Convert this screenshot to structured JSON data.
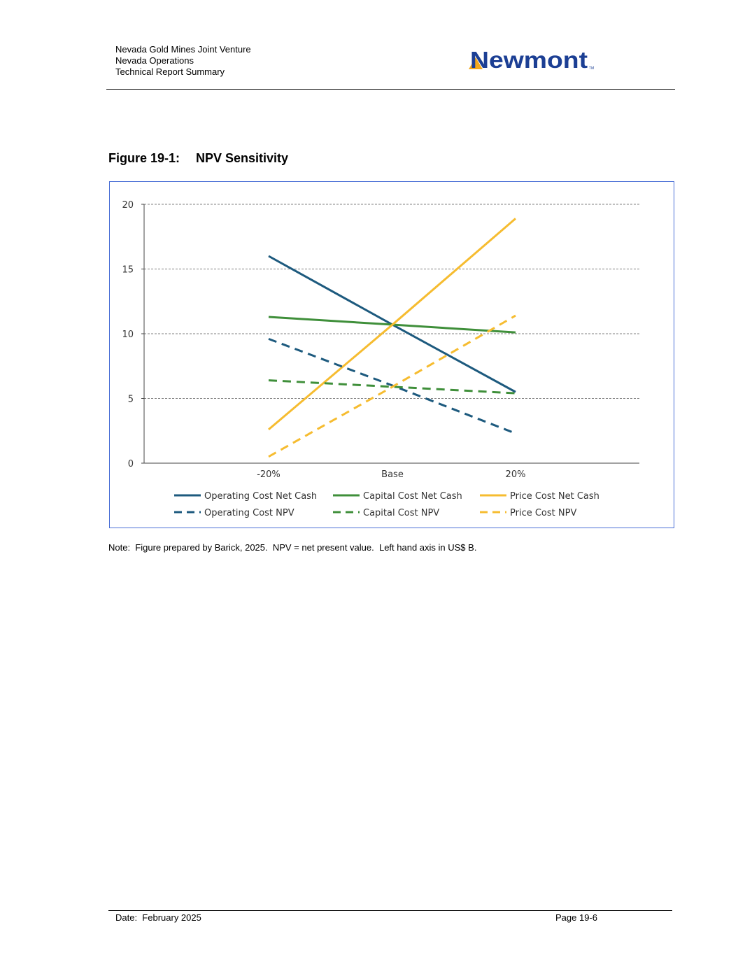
{
  "header": {
    "line1": "Nevada Gold Mines Joint Venture",
    "line2": "Nevada Operations",
    "line3": "Technical Report Summary"
  },
  "logo": {
    "text": "Newmont",
    "tm": "TM",
    "color": "#1c3f94",
    "accent": "#f2a81d"
  },
  "figure": {
    "number": "Figure 19-1:",
    "title": "NPV Sensitivity"
  },
  "chart_data": {
    "type": "line",
    "categories": [
      "-20%",
      "Base",
      "20%"
    ],
    "ylim": [
      0,
      20
    ],
    "yticks": [
      "0",
      "5",
      "10",
      "15",
      "20"
    ],
    "grid": true,
    "legend_position": "bottom",
    "series": [
      {
        "name": "Operating Cost Net Cash",
        "values": [
          16.0,
          10.7,
          5.5
        ],
        "color": "#1d5a7e",
        "dashed": false
      },
      {
        "name": "Capital Cost Net Cash",
        "values": [
          11.3,
          10.7,
          10.1
        ],
        "color": "#3f8f3a",
        "dashed": false
      },
      {
        "name": "Price Cost Net Cash",
        "values": [
          2.6,
          10.7,
          18.9
        ],
        "color": "#f6bc30",
        "dashed": false
      },
      {
        "name": "Operating Cost NPV",
        "values": [
          9.6,
          6.0,
          2.3
        ],
        "color": "#1d5a7e",
        "dashed": true
      },
      {
        "name": "Capital Cost NPV",
        "values": [
          6.4,
          5.9,
          5.4
        ],
        "color": "#3f8f3a",
        "dashed": true
      },
      {
        "name": "Price Cost NPV",
        "values": [
          0.5,
          5.9,
          11.4
        ],
        "color": "#f6bc30",
        "dashed": true
      }
    ]
  },
  "note": "Note:  Figure prepared by Barick, 2025.  NPV = net present value.  Left hand axis in US$ B.",
  "footer": {
    "date": "Date:  February 2025",
    "page": "Page 19-6"
  }
}
